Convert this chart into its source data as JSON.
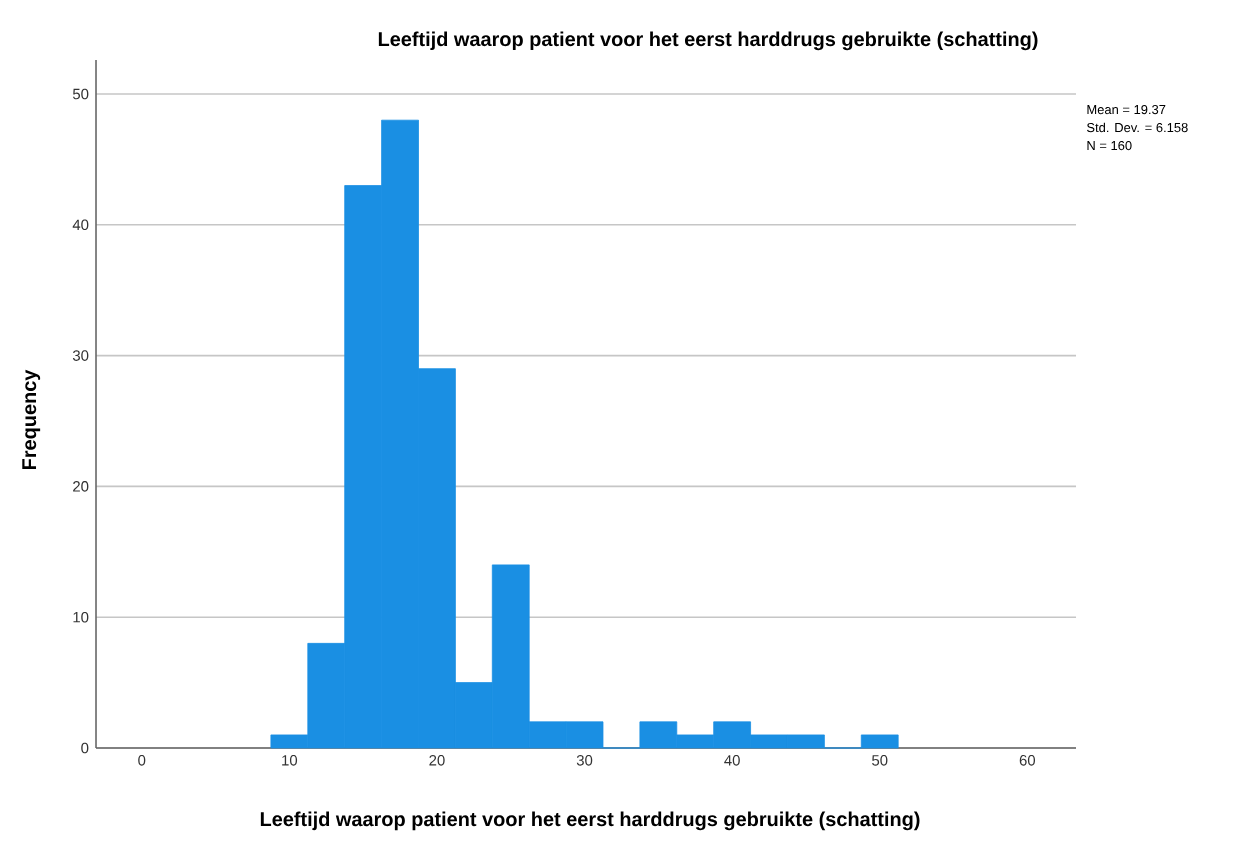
{
  "chart_data": {
    "type": "histogram",
    "title": "Leeftijd waarop patient voor het eerst harddrugs gebruikte (schatting)",
    "xlabel": "Leeftijd waarop patient voor het eerst harddrugs gebruikte (schatting)",
    "ylabel": "Frequency",
    "bins": [
      8.75,
      11.25,
      13.75,
      16.25,
      18.75,
      21.25,
      23.75,
      26.25,
      28.75,
      31.25,
      33.75,
      36.25,
      38.75,
      41.25,
      43.75,
      46.25,
      48.75,
      51.25
    ],
    "values": [
      1,
      8,
      43,
      48,
      29,
      5,
      14,
      2,
      2,
      0,
      2,
      1,
      2,
      1,
      1,
      0,
      1
    ],
    "color": "#1a8fe3",
    "xlim": [
      -3.1,
      63.3
    ],
    "ylim": [
      0,
      52.6
    ],
    "xticks": [
      0,
      10,
      20,
      30,
      40,
      50,
      60
    ],
    "yticks": [
      0,
      10,
      20,
      30,
      40,
      50
    ],
    "grid": "y",
    "annotations": [
      "Mean = 19.37",
      "Std. Dev. = 6.158",
      "N = 160"
    ]
  }
}
